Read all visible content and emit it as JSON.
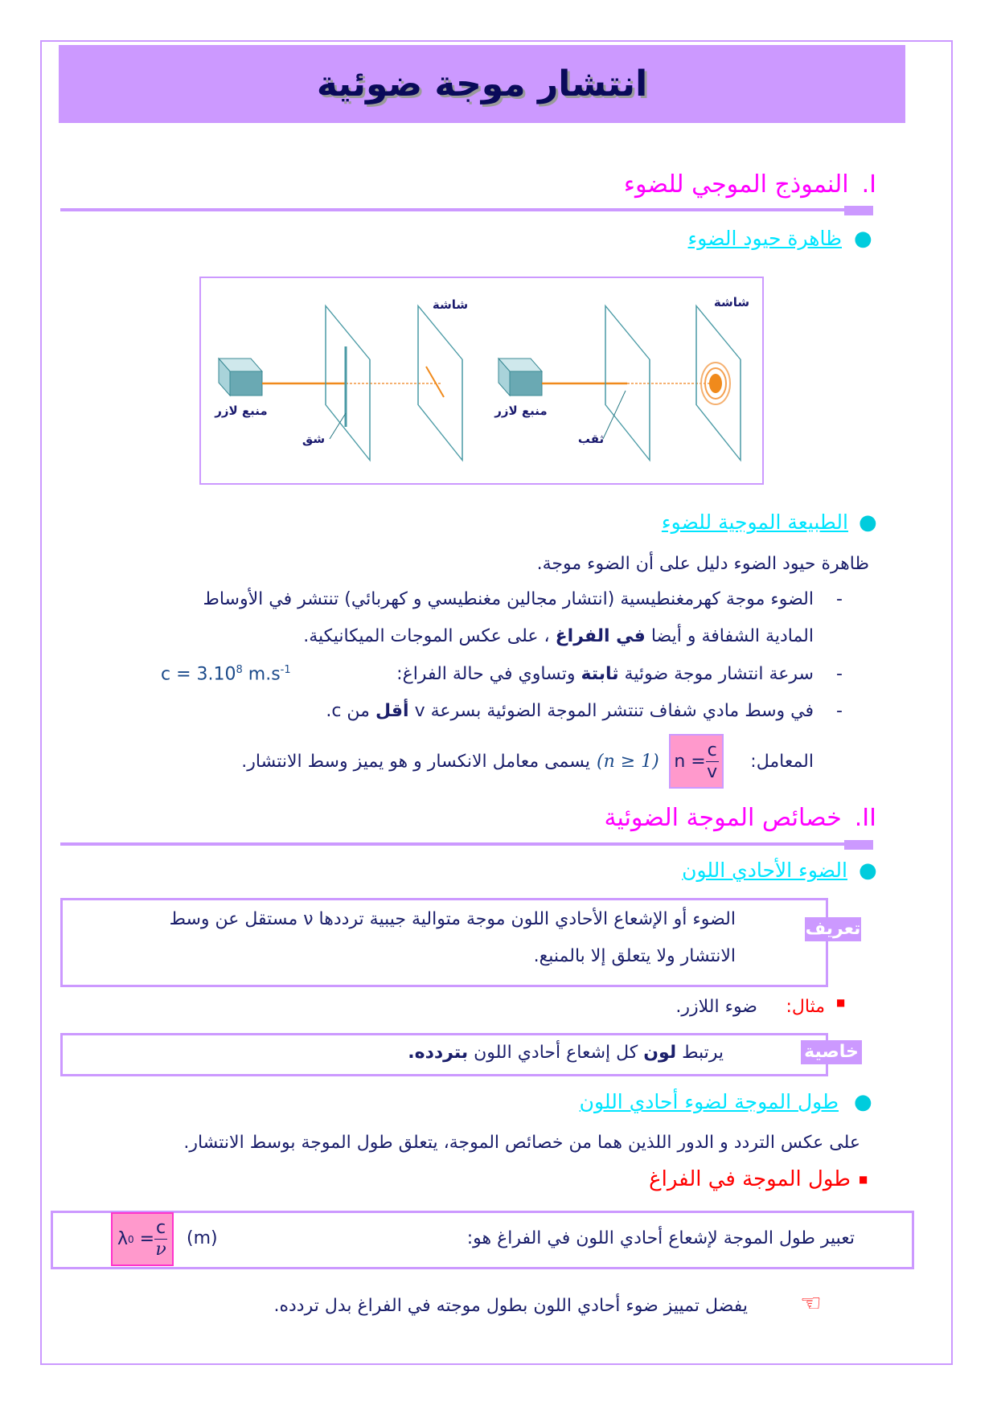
{
  "title": "انتشار موجة ضوئية",
  "section1": {
    "number": "I.",
    "title": "النموذج الموجي للضوء",
    "sub1": "ظاهرة حيود الضوء",
    "figure": {
      "source_label": "منبع لازر",
      "slit_label": "شق",
      "hole_label": "ثقب",
      "screen_label": "شاشة"
    },
    "sub2": "الطبيعة الموجية للضوء",
    "intro": "ظاهرة حيود الضوء دليل على أن الضوء موجة.",
    "item1_line1": "الضوء موجة كهرمغنطيسية (انتشار مجالين مغنطيسي و كهربائي) تنتشر في الأوساط",
    "item1_line2_a": "المادية الشفافة و أيضا ",
    "item1_line2_bold": "في الفراغ",
    "item1_line2_b": " ، على عكس الموجات الميكانيكية.",
    "item2_a": "سرعة انتشار موجة ضوئية ",
    "item2_bold": "ثابتة",
    "item2_b": " وتساوي في حالة الفراغ:",
    "item2_formula": "c = 3.10",
    "item2_exp": "8",
    "item2_unit": " m.s",
    "item2_unit_exp": "-1",
    "item3_a": "في وسط مادي شفاف تنتشر الموجة الضوئية بسرعة v ",
    "item3_bold": "أقل",
    "item3_b": " من c.",
    "index_label": "المعامل:",
    "index_lhs": "n =",
    "index_num": "c",
    "index_den": "v",
    "index_cond": "(n ≥ 1)",
    "index_text": "يسمى معامل الانكسار و هو يميز وسط الانتشار.",
    "dash": "-"
  },
  "section2": {
    "number": "II.",
    "title": "خصائص الموجة الضوئية",
    "sub1": "الضوء الأحادي اللون",
    "definition_tag": "تعريف",
    "definition_line1": "الضوء أو الإشعاع الأحادي اللون موجة متوالية جيبية ترددها ν مستقل عن وسط",
    "definition_line2": "الانتشار ولا يتعلق إلا بالمنبع.",
    "example_label": "مثال:",
    "example_text": "ضوء اللازر.",
    "property_tag": "خاصية",
    "property_a": "يرتبط ",
    "property_bold1": "لون",
    "property_b": " كل إشعاع أحادي اللون ",
    "property_bold2": "بتردده.",
    "sub2": "طول الموجة لضوء أحادي اللون",
    "para": "على عكس التردد و الدور اللذين هما من خصائص الموجة، يتعلق طول الموجة بوسط الانتشار.",
    "vacuum_title": "طول الموجة في الفراغ",
    "vacuum_text": "تعبير طول الموجة لإشعاع أحادي اللون في الفراغ هو:",
    "lambda_lhs": "λ",
    "lambda_sub": "0",
    "lambda_num": "c",
    "lambda_den": "ν",
    "lambda_unit": "(m)",
    "note": "يفضل تمييز ضوء أحادي اللون بطول موجته في الفراغ بدل تردده.",
    "note_icon": "pointing-hand-icon"
  },
  "colors": {
    "accent": "#cc99ff",
    "heading": "#ff00ff",
    "subheading": "#00e5ff",
    "text": "#1b1f6b",
    "formula_bg": "#ff99cc",
    "red": "#ff0000"
  }
}
